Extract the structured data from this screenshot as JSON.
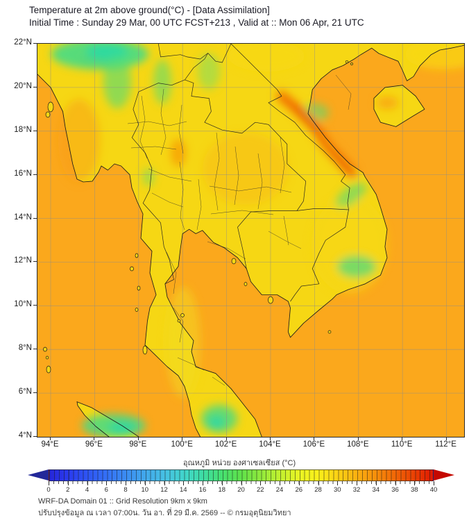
{
  "header": {
    "title": "Temperature at 2m above ground(°C) - [Data Assimilation]",
    "subtitle": "Initial Time : Sunday 29 Mar, 00 UTC FCST+213 , Valid at :: Mon 06 Apr, 21 UTC"
  },
  "map": {
    "lat_labels": [
      "22°N",
      "20°N",
      "18°N",
      "16°N",
      "14°N",
      "12°N",
      "10°N",
      "8°N",
      "6°N",
      "4°N"
    ],
    "lon_labels": [
      "94°E",
      "96°E",
      "98°E",
      "100°E",
      "102°E",
      "104°E",
      "106°E",
      "108°E",
      "110°E",
      "112°E"
    ],
    "colors": {
      "sea": "#FBA81C",
      "land": "#F6D714",
      "cool_green": "#46DB85",
      "cool_core": "#2BD8A6",
      "hot_streak": "#EE6606",
      "hot_glow": "#F6900C",
      "coastline": "#1C1C1C",
      "grid": "#8C8C8C",
      "frame": "#2A2A2A"
    }
  },
  "colorbar": {
    "label": "อุณหภูมิ หน่วย องศาเซลเซียส (°C)",
    "min": 0,
    "max": 40,
    "ticks": [
      0,
      2,
      4,
      6,
      8,
      10,
      12,
      14,
      16,
      18,
      20,
      22,
      24,
      26,
      28,
      30,
      32,
      34,
      36,
      38,
      40
    ],
    "stops": [
      {
        "v": 0,
        "c": "#2626D8"
      },
      {
        "v": 2,
        "c": "#2A3BEE"
      },
      {
        "v": 4,
        "c": "#2E55F4"
      },
      {
        "v": 6,
        "c": "#3470F6"
      },
      {
        "v": 8,
        "c": "#3B8CF2"
      },
      {
        "v": 10,
        "c": "#41A8EC"
      },
      {
        "v": 12,
        "c": "#46C0E4"
      },
      {
        "v": 14,
        "c": "#41D4CC"
      },
      {
        "v": 16,
        "c": "#3EDCA4"
      },
      {
        "v": 18,
        "c": "#46E070"
      },
      {
        "v": 20,
        "c": "#5FE24A"
      },
      {
        "v": 22,
        "c": "#8FE93C"
      },
      {
        "v": 24,
        "c": "#C0F02F"
      },
      {
        "v": 26,
        "c": "#E8F424"
      },
      {
        "v": 28,
        "c": "#FAF01A"
      },
      {
        "v": 30,
        "c": "#FCD214"
      },
      {
        "v": 32,
        "c": "#FBB110"
      },
      {
        "v": 34,
        "c": "#F78F0B"
      },
      {
        "v": 36,
        "c": "#F26806"
      },
      {
        "v": 38,
        "c": "#EA4103"
      },
      {
        "v": 40,
        "c": "#DE1800"
      }
    ],
    "left_arrow_color": "#232899",
    "right_arrow_color": "#C40800"
  },
  "footer": {
    "line1": "WRF-DA Domain 01 :: Grid Resolution 9km x 9km",
    "line2": "ปรับปรุงข้อมูล ณ เวลา 07:00น. วัน อา. ที่ 29 มี.ค. 2569 -- © กรมอุตุนิยมวิทยา"
  }
}
